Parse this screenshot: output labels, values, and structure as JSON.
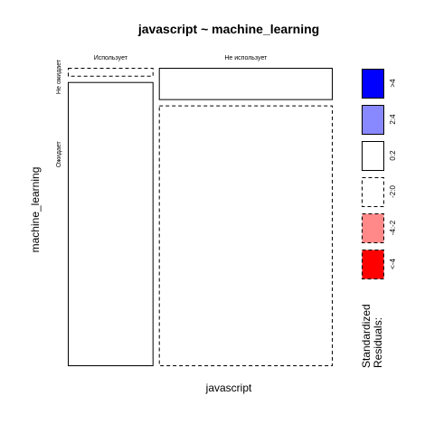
{
  "chart_data": {
    "type": "mosaic",
    "title": "javascript ~ machine_learning",
    "xlabel": "javascript",
    "ylabel": "machine_learning",
    "x_levels": [
      "Использует",
      "Не использует"
    ],
    "y_levels": [
      "Не ожидает",
      "Ожидает"
    ],
    "column_shares": [
      0.33,
      0.67
    ],
    "cells": [
      {
        "x": "Использует",
        "y": "Не ожидает",
        "share": 0.03,
        "residual_class": "<-4,-2 .. 0>",
        "fill": "#ffffff",
        "line": "dashed"
      },
      {
        "x": "Использует",
        "y": "Ожидает",
        "share": 0.97,
        "fill": "#ffffff",
        "line": "solid"
      },
      {
        "x": "Не использует",
        "y": "Не ожидает",
        "share": 0.11,
        "fill": "#ffffff",
        "line": "solid"
      },
      {
        "x": "Не использует",
        "y": "Ожидает",
        "share": 0.89,
        "fill": "#ffffff",
        "line": "dashed"
      }
    ],
    "legend": {
      "title_lines": [
        "Standardized",
        "Residuals:"
      ],
      "entries": [
        {
          "label": ">4",
          "fill": "#0000ff",
          "line": "solid"
        },
        {
          "label": "2:4",
          "fill": "#8888ff",
          "line": "solid"
        },
        {
          "label": "0:2",
          "fill": "#ffffff",
          "line": "solid"
        },
        {
          "label": "-2:0",
          "fill": "#ffffff",
          "line": "dashed"
        },
        {
          "label": "-4:-2",
          "fill": "#ff8888",
          "line": "dashed"
        },
        {
          "label": "<-4",
          "fill": "#ff0000",
          "line": "dashed"
        }
      ],
      "placement": "right"
    }
  }
}
